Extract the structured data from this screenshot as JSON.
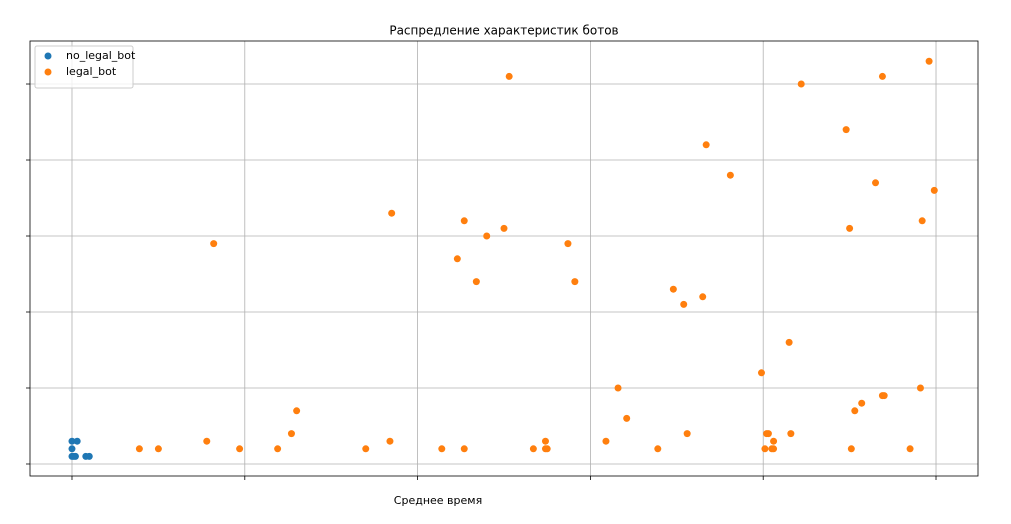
{
  "chart_data": {
    "type": "scatter",
    "title": "Распредление характеристик ботов",
    "x_label": "Среднее время",
    "series": [
      {
        "name": "no_legal_bot",
        "color": "#1f77b4",
        "x": [
          0,
          0.03,
          0,
          0,
          0.02,
          0.08,
          0.1,
          0.01
        ],
        "values": [
          0.3,
          0.3,
          0.2,
          0.1,
          0.1,
          0.1,
          0.1,
          0.1
        ]
      },
      {
        "name": "legal_bot",
        "color": "#ff7f0e",
        "x": [
          0.39,
          0.5,
          0.78,
          0.82,
          0.97,
          1.19,
          1.27,
          1.3,
          1.7,
          1.84,
          1.85,
          2.14,
          2.23,
          2.27,
          2.27,
          2.34,
          2.4,
          2.5,
          2.53,
          2.67,
          2.74,
          2.74,
          2.75,
          2.87,
          2.91,
          3.09,
          3.16,
          3.21,
          3.39,
          3.48,
          3.54,
          3.56,
          3.65,
          3.67,
          3.81,
          3.99,
          4.01,
          4.02,
          4.03,
          4.05,
          4.06,
          4.06,
          4.15,
          4.16,
          4.22,
          4.48,
          4.5,
          4.51,
          4.53,
          4.57,
          4.65,
          4.69,
          4.69,
          4.7,
          4.85,
          4.91,
          4.92,
          4.96,
          4.99
        ],
        "values": [
          0.2,
          0.2,
          0.3,
          2.9,
          0.2,
          0.2,
          0.4,
          0.7,
          0.2,
          0.3,
          3.3,
          0.2,
          2.7,
          0.2,
          3.2,
          2.4,
          3.0,
          3.1,
          5.1,
          0.2,
          0.2,
          0.3,
          0.2,
          2.9,
          2.4,
          0.3,
          1.0,
          0.6,
          0.2,
          2.3,
          2.1,
          0.4,
          2.2,
          4.2,
          3.8,
          1.2,
          0.2,
          0.4,
          0.4,
          0.2,
          0.3,
          0.2,
          1.6,
          0.4,
          5.0,
          4.4,
          3.1,
          0.2,
          0.7,
          0.8,
          3.7,
          0.9,
          5.1,
          0.9,
          0.2,
          1.0,
          3.2,
          5.3,
          3.6
        ]
      }
    ],
    "xlim": [
      -0.243,
      5.243
    ],
    "ylim": [
      -0.158,
      5.566
    ],
    "xticks": [
      0,
      1,
      2,
      3,
      4,
      5
    ],
    "yticks": [
      0,
      1,
      2,
      3,
      4,
      5
    ],
    "grid": true,
    "legend": "upper-left"
  }
}
